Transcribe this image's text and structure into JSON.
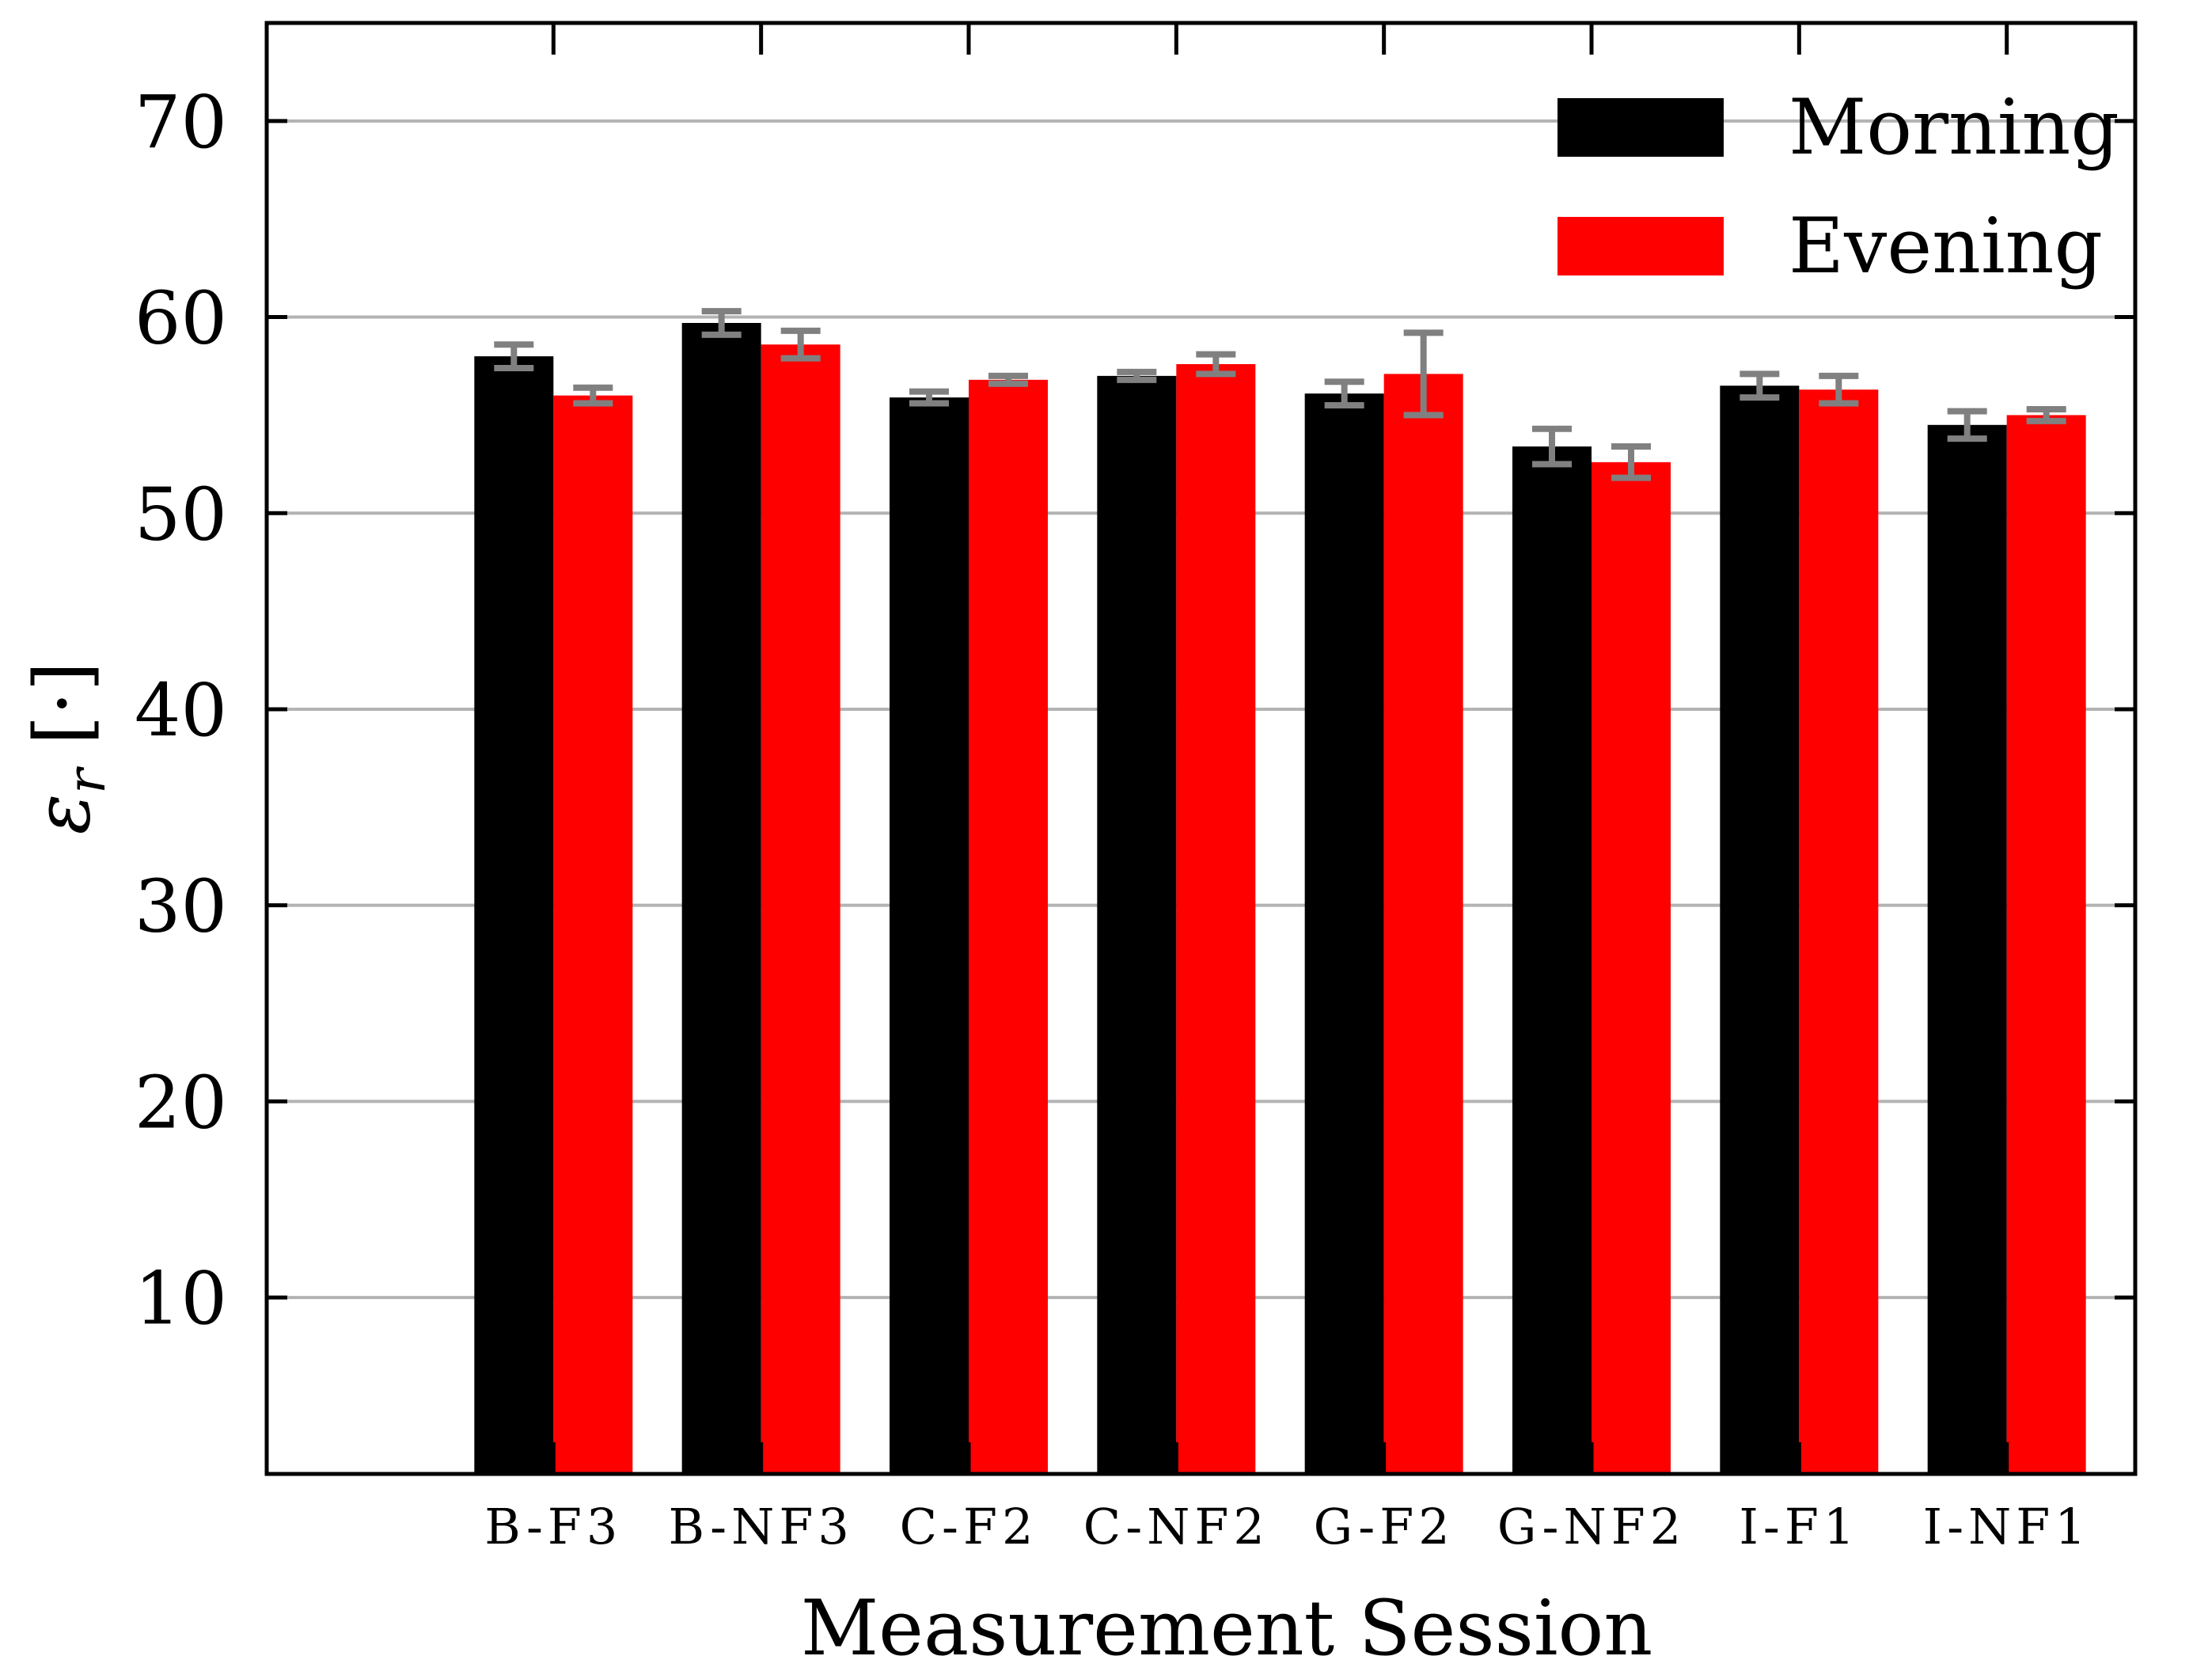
{
  "chart_data": {
    "type": "bar",
    "title": "",
    "xlabel": "Measurement Session",
    "ylabel_symbol": "ε",
    "ylabel_subscript": "r",
    "ylabel_unit": "[·]",
    "ylim": [
      1,
      75
    ],
    "yticks": [
      10,
      20,
      30,
      40,
      50,
      60,
      70
    ],
    "grid": true,
    "legend_position": "top-right",
    "categories": [
      "B-F3",
      "B-NF3",
      "C-F2",
      "C-NF2",
      "G-F2",
      "G-NF2",
      "I-F1",
      "I-NF1"
    ],
    "series": [
      {
        "name": "Morning",
        "color": "#000000",
        "values": [
          58.0,
          59.7,
          55.9,
          57.0,
          56.1,
          53.4,
          56.5,
          54.5
        ],
        "error": [
          0.6,
          0.6,
          0.3,
          0.2,
          0.6,
          0.9,
          0.6,
          0.7
        ]
      },
      {
        "name": "Evening",
        "color": "#ff0000",
        "values": [
          56.0,
          58.6,
          56.8,
          57.6,
          57.1,
          52.6,
          56.3,
          55.0
        ],
        "error": [
          0.4,
          0.7,
          0.2,
          0.5,
          2.1,
          0.8,
          0.7,
          0.3
        ]
      }
    ],
    "error_bar_color": "#808080",
    "grid_color": "#b3b3b3"
  }
}
